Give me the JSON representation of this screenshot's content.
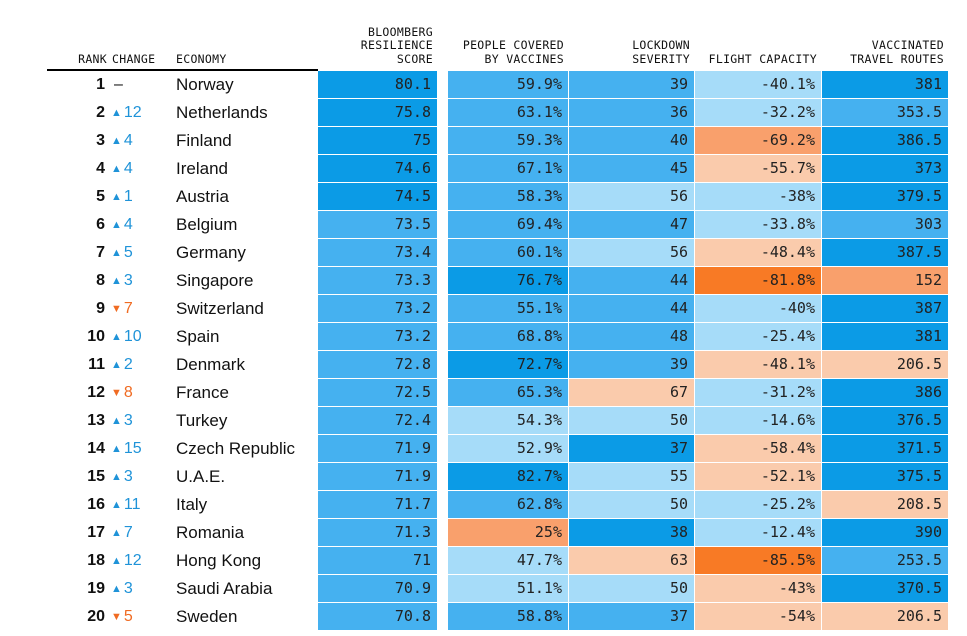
{
  "chart_data": {
    "type": "table",
    "columns": [
      {
        "key": "rank",
        "label": "RANK"
      },
      {
        "key": "change",
        "label": "CHANGE"
      },
      {
        "key": "economy",
        "label": "ECONOMY"
      },
      {
        "key": "score",
        "label": "BLOOMBERG\nRESILIENCE\nSCORE"
      },
      {
        "key": "vaccines",
        "label": "PEOPLE COVERED\nBY VACCINES"
      },
      {
        "key": "lockdown",
        "label": "LOCKDOWN\nSEVERITY"
      },
      {
        "key": "flight",
        "label": "FLIGHT CAPACITY"
      },
      {
        "key": "routes",
        "label": "VACCINATED\nTRAVEL ROUTES"
      }
    ],
    "colors": {
      "dark_blue": "#0b9be6",
      "mid_blue": "#45b1f0",
      "light_blue": "#a6dcf9",
      "light_orange": "#facbac",
      "mid_orange": "#f9a06c",
      "dark_orange": "#f87a25",
      "up": "#1f93d8",
      "down": "#f06b22"
    },
    "rows": [
      {
        "rank": "1",
        "dir": "none",
        "change": "–",
        "economy": "Norway",
        "score": "80.1",
        "score_c": "dark_blue",
        "vaccines": "59.9%",
        "vaccines_c": "mid_blue",
        "lockdown": "39",
        "lockdown_c": "mid_blue",
        "flight": "-40.1%",
        "flight_c": "light_blue",
        "routes": "381",
        "routes_c": "dark_blue"
      },
      {
        "rank": "2",
        "dir": "up",
        "change": "12",
        "economy": "Netherlands",
        "score": "75.8",
        "score_c": "dark_blue",
        "vaccines": "63.1%",
        "vaccines_c": "mid_blue",
        "lockdown": "36",
        "lockdown_c": "mid_blue",
        "flight": "-32.2%",
        "flight_c": "light_blue",
        "routes": "353.5",
        "routes_c": "mid_blue"
      },
      {
        "rank": "3",
        "dir": "up",
        "change": "4",
        "economy": "Finland",
        "score": "75",
        "score_c": "dark_blue",
        "vaccines": "59.3%",
        "vaccines_c": "mid_blue",
        "lockdown": "40",
        "lockdown_c": "mid_blue",
        "flight": "-69.2%",
        "flight_c": "mid_orange",
        "routes": "386.5",
        "routes_c": "dark_blue"
      },
      {
        "rank": "4",
        "dir": "up",
        "change": "4",
        "economy": "Ireland",
        "score": "74.6",
        "score_c": "dark_blue",
        "vaccines": "67.1%",
        "vaccines_c": "mid_blue",
        "lockdown": "45",
        "lockdown_c": "mid_blue",
        "flight": "-55.7%",
        "flight_c": "light_orange",
        "routes": "373",
        "routes_c": "dark_blue"
      },
      {
        "rank": "5",
        "dir": "up",
        "change": "1",
        "economy": "Austria",
        "score": "74.5",
        "score_c": "dark_blue",
        "vaccines": "58.3%",
        "vaccines_c": "mid_blue",
        "lockdown": "56",
        "lockdown_c": "light_blue",
        "flight": "-38%",
        "flight_c": "light_blue",
        "routes": "379.5",
        "routes_c": "dark_blue"
      },
      {
        "rank": "6",
        "dir": "up",
        "change": "4",
        "economy": "Belgium",
        "score": "73.5",
        "score_c": "mid_blue",
        "vaccines": "69.4%",
        "vaccines_c": "mid_blue",
        "lockdown": "47",
        "lockdown_c": "mid_blue",
        "flight": "-33.8%",
        "flight_c": "light_blue",
        "routes": "303",
        "routes_c": "mid_blue"
      },
      {
        "rank": "7",
        "dir": "up",
        "change": "5",
        "economy": "Germany",
        "score": "73.4",
        "score_c": "mid_blue",
        "vaccines": "60.1%",
        "vaccines_c": "mid_blue",
        "lockdown": "56",
        "lockdown_c": "light_blue",
        "flight": "-48.4%",
        "flight_c": "light_orange",
        "routes": "387.5",
        "routes_c": "dark_blue"
      },
      {
        "rank": "8",
        "dir": "up",
        "change": "3",
        "economy": "Singapore",
        "score": "73.3",
        "score_c": "mid_blue",
        "vaccines": "76.7%",
        "vaccines_c": "dark_blue",
        "lockdown": "44",
        "lockdown_c": "mid_blue",
        "flight": "-81.8%",
        "flight_c": "dark_orange",
        "routes": "152",
        "routes_c": "mid_orange"
      },
      {
        "rank": "9",
        "dir": "down",
        "change": "7",
        "economy": "Switzerland",
        "score": "73.2",
        "score_c": "mid_blue",
        "vaccines": "55.1%",
        "vaccines_c": "mid_blue",
        "lockdown": "44",
        "lockdown_c": "mid_blue",
        "flight": "-40%",
        "flight_c": "light_blue",
        "routes": "387",
        "routes_c": "dark_blue"
      },
      {
        "rank": "10",
        "dir": "up",
        "change": "10",
        "economy": "Spain",
        "score": "73.2",
        "score_c": "mid_blue",
        "vaccines": "68.8%",
        "vaccines_c": "mid_blue",
        "lockdown": "48",
        "lockdown_c": "mid_blue",
        "flight": "-25.4%",
        "flight_c": "light_blue",
        "routes": "381",
        "routes_c": "dark_blue"
      },
      {
        "rank": "11",
        "dir": "up",
        "change": "2",
        "economy": "Denmark",
        "score": "72.8",
        "score_c": "mid_blue",
        "vaccines": "72.7%",
        "vaccines_c": "dark_blue",
        "lockdown": "39",
        "lockdown_c": "mid_blue",
        "flight": "-48.1%",
        "flight_c": "light_orange",
        "routes": "206.5",
        "routes_c": "light_orange"
      },
      {
        "rank": "12",
        "dir": "down",
        "change": "8",
        "economy": "France",
        "score": "72.5",
        "score_c": "mid_blue",
        "vaccines": "65.3%",
        "vaccines_c": "mid_blue",
        "lockdown": "67",
        "lockdown_c": "light_orange",
        "flight": "-31.2%",
        "flight_c": "light_blue",
        "routes": "386",
        "routes_c": "dark_blue"
      },
      {
        "rank": "13",
        "dir": "up",
        "change": "3",
        "economy": "Turkey",
        "score": "72.4",
        "score_c": "mid_blue",
        "vaccines": "54.3%",
        "vaccines_c": "light_blue",
        "lockdown": "50",
        "lockdown_c": "light_blue",
        "flight": "-14.6%",
        "flight_c": "light_blue",
        "routes": "376.5",
        "routes_c": "dark_blue"
      },
      {
        "rank": "14",
        "dir": "up",
        "change": "15",
        "economy": "Czech Republic",
        "score": "71.9",
        "score_c": "mid_blue",
        "vaccines": "52.9%",
        "vaccines_c": "light_blue",
        "lockdown": "37",
        "lockdown_c": "dark_blue",
        "flight": "-58.4%",
        "flight_c": "light_orange",
        "routes": "371.5",
        "routes_c": "dark_blue"
      },
      {
        "rank": "15",
        "dir": "up",
        "change": "3",
        "economy": "U.A.E.",
        "score": "71.9",
        "score_c": "mid_blue",
        "vaccines": "82.7%",
        "vaccines_c": "dark_blue",
        "lockdown": "55",
        "lockdown_c": "light_blue",
        "flight": "-52.1%",
        "flight_c": "light_orange",
        "routes": "375.5",
        "routes_c": "dark_blue"
      },
      {
        "rank": "16",
        "dir": "up",
        "change": "11",
        "economy": "Italy",
        "score": "71.7",
        "score_c": "mid_blue",
        "vaccines": "62.8%",
        "vaccines_c": "mid_blue",
        "lockdown": "50",
        "lockdown_c": "light_blue",
        "flight": "-25.2%",
        "flight_c": "light_blue",
        "routes": "208.5",
        "routes_c": "light_orange"
      },
      {
        "rank": "17",
        "dir": "up",
        "change": "7",
        "economy": "Romania",
        "score": "71.3",
        "score_c": "mid_blue",
        "vaccines": "25%",
        "vaccines_c": "mid_orange",
        "lockdown": "38",
        "lockdown_c": "dark_blue",
        "flight": "-12.4%",
        "flight_c": "light_blue",
        "routes": "390",
        "routes_c": "dark_blue"
      },
      {
        "rank": "18",
        "dir": "up",
        "change": "12",
        "economy": "Hong Kong",
        "score": "71",
        "score_c": "mid_blue",
        "vaccines": "47.7%",
        "vaccines_c": "light_blue",
        "lockdown": "63",
        "lockdown_c": "light_orange",
        "flight": "-85.5%",
        "flight_c": "dark_orange",
        "routes": "253.5",
        "routes_c": "mid_blue"
      },
      {
        "rank": "19",
        "dir": "up",
        "change": "3",
        "economy": "Saudi Arabia",
        "score": "70.9",
        "score_c": "mid_blue",
        "vaccines": "51.1%",
        "vaccines_c": "light_blue",
        "lockdown": "50",
        "lockdown_c": "light_blue",
        "flight": "-43%",
        "flight_c": "light_orange",
        "routes": "370.5",
        "routes_c": "dark_blue"
      },
      {
        "rank": "20",
        "dir": "down",
        "change": "5",
        "economy": "Sweden",
        "score": "70.8",
        "score_c": "mid_blue",
        "vaccines": "58.8%",
        "vaccines_c": "mid_blue",
        "lockdown": "37",
        "lockdown_c": "mid_blue",
        "flight": "-54%",
        "flight_c": "light_orange",
        "routes": "206.5",
        "routes_c": "light_orange"
      }
    ]
  }
}
